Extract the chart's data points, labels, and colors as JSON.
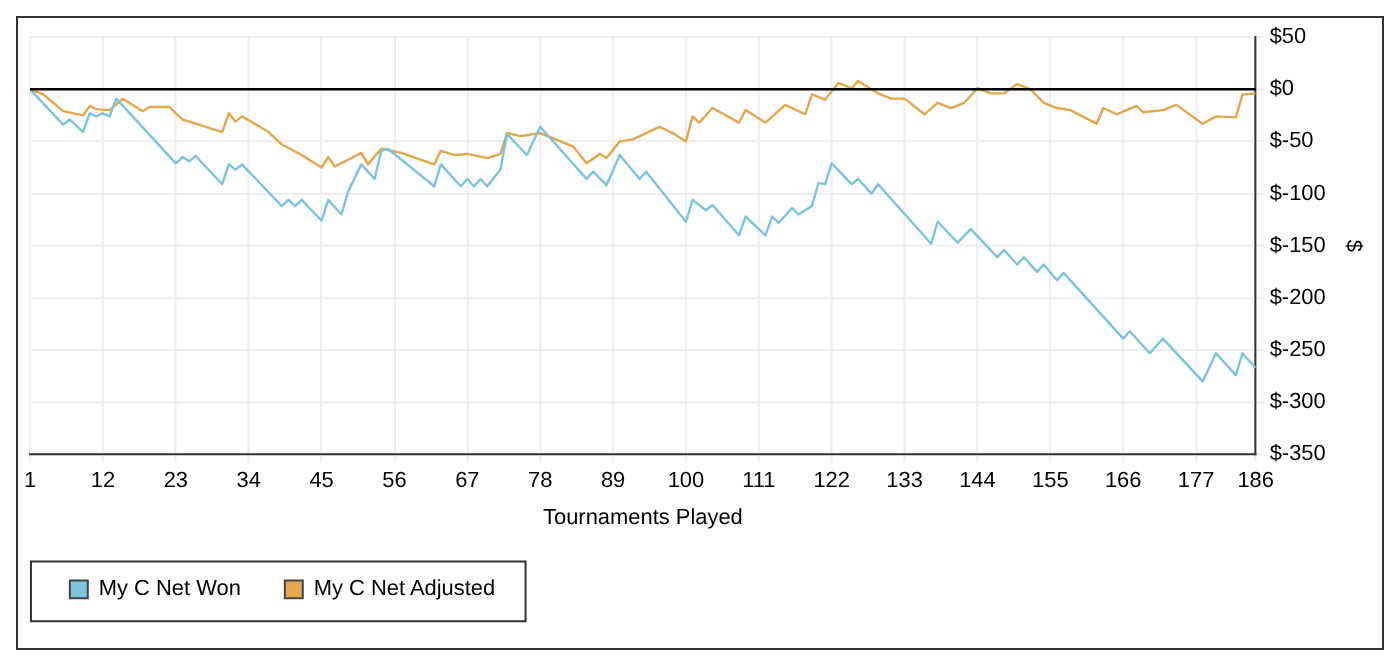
{
  "chart_data": {
    "type": "line",
    "xlabel": "Tournaments Played",
    "ylabel": "$",
    "xlim": [
      1,
      186
    ],
    "xticks": [
      1,
      12,
      23,
      34,
      45,
      56,
      67,
      78,
      89,
      100,
      111,
      122,
      133,
      144,
      155,
      166,
      177,
      186
    ],
    "ylim": [
      -350,
      50
    ],
    "yticks": [
      {
        "value": -350,
        "label": "$-350"
      },
      {
        "value": -300,
        "label": "$-300"
      },
      {
        "value": -250,
        "label": "$-250"
      },
      {
        "value": -200,
        "label": "$-200"
      },
      {
        "value": -150,
        "label": "$-150"
      },
      {
        "value": -100,
        "label": "$-100"
      },
      {
        "value": -50,
        "label": "$-50"
      },
      {
        "value": 0,
        "label": "$0"
      },
      {
        "value": 50,
        "label": "$50"
      }
    ],
    "grid": true,
    "legend": "bottom left",
    "marker": "none",
    "line_style": "solid",
    "ref_lines": [
      {
        "axis": "y",
        "value": 0,
        "color": "#000000"
      }
    ],
    "series": [
      {
        "name": "My C Net Won",
        "color": "#7cc3dc",
        "x": [
          1,
          6,
          7,
          9,
          10,
          11,
          12,
          13,
          14,
          23,
          24,
          25,
          26,
          30,
          31,
          32,
          33,
          39,
          40,
          41,
          42,
          45,
          46,
          48,
          49,
          51,
          53,
          54,
          55,
          62,
          63,
          66,
          67,
          68,
          69,
          70,
          72,
          73,
          76,
          78,
          85,
          86,
          88,
          90,
          93,
          94,
          100,
          101,
          103,
          104,
          108,
          109,
          112,
          113,
          114,
          116,
          117,
          119,
          120,
          121,
          122,
          125,
          126,
          128,
          129,
          137,
          138,
          141,
          143,
          147,
          148,
          150,
          151,
          153,
          154,
          156,
          157,
          166,
          167,
          170,
          172,
          178,
          180,
          183,
          184,
          186
        ],
        "values": [
          0,
          -34,
          -29,
          -41,
          -23,
          -26,
          -23,
          -26,
          -9,
          -71,
          -65,
          -69,
          -64,
          -91,
          -72,
          -77,
          -72,
          -112,
          -106,
          -112,
          -106,
          -126,
          -106,
          -120,
          -98,
          -72,
          -86,
          -59,
          -57,
          -93,
          -72,
          -93,
          -86,
          -93,
          -86,
          -93,
          -77,
          -43,
          -63,
          -36,
          -86,
          -79,
          -92,
          -63,
          -86,
          -79,
          -127,
          -106,
          -116,
          -111,
          -140,
          -122,
          -140,
          -122,
          -128,
          -114,
          -120,
          -112,
          -90,
          -91,
          -71,
          -91,
          -86,
          -100,
          -91,
          -148,
          -127,
          -147,
          -134,
          -161,
          -154,
          -168,
          -161,
          -175,
          -168,
          -183,
          -176,
          -239,
          -232,
          -253,
          -239,
          -280,
          -253,
          -274,
          -253,
          -267
        ]
      },
      {
        "name": "My C Net Adjusted",
        "color": "#e3a74c",
        "x": [
          1,
          3,
          6,
          9,
          10,
          11,
          13,
          15,
          18,
          19,
          22,
          24,
          26,
          30,
          31,
          32,
          33,
          37,
          39,
          42,
          45,
          46,
          47,
          51,
          52,
          54,
          57,
          62,
          63,
          65,
          67,
          70,
          72,
          73,
          75,
          78,
          83,
          85,
          87,
          88,
          90,
          92,
          94,
          96,
          98,
          100,
          101,
          102,
          104,
          108,
          109,
          112,
          115,
          118,
          119,
          121,
          123,
          125,
          126,
          129,
          131,
          133,
          136,
          138,
          140,
          142,
          144,
          146,
          148,
          150,
          152,
          154,
          156,
          158,
          162,
          163,
          165,
          168,
          169,
          172,
          174,
          178,
          180,
          183,
          184,
          186
        ],
        "values": [
          0,
          -5,
          -21,
          -25,
          -16,
          -19,
          -20,
          -9,
          -21,
          -17,
          -17,
          -29,
          -33,
          -41,
          -23,
          -31,
          -26,
          -41,
          -53,
          -63,
          -75,
          -65,
          -74,
          -61,
          -72,
          -57,
          -61,
          -72,
          -59,
          -63,
          -62,
          -66,
          -62,
          -42,
          -45,
          -42,
          -55,
          -71,
          -62,
          -66,
          -50,
          -48,
          -42,
          -36,
          -42,
          -50,
          -26,
          -32,
          -18,
          -32,
          -20,
          -32,
          -15,
          -24,
          -5,
          -10,
          6,
          1,
          8,
          -4,
          -9,
          -9,
          -24,
          -13,
          -18,
          -13,
          1,
          -4,
          -4,
          5,
          0,
          -13,
          -18,
          -20,
          -33,
          -18,
          -24,
          -16,
          -22,
          -20,
          -15,
          -33,
          -26,
          -27,
          -5,
          -4
        ]
      }
    ]
  }
}
